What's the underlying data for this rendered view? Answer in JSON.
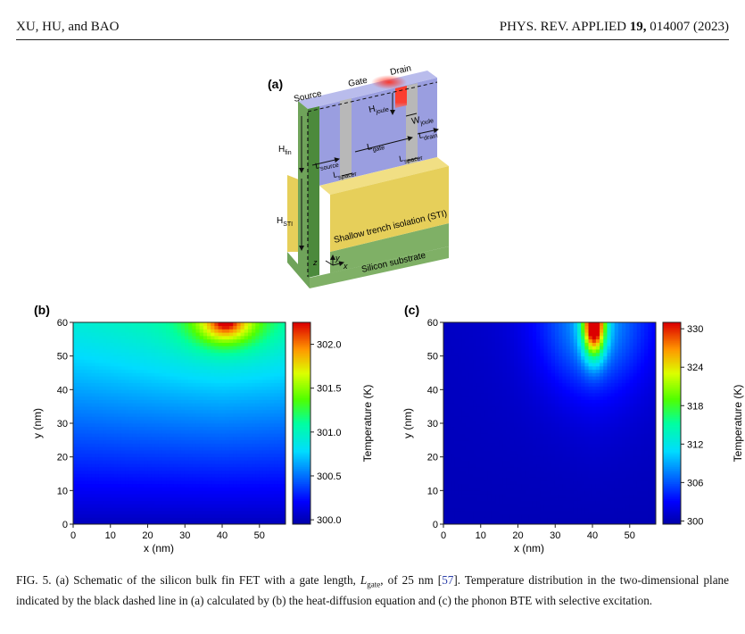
{
  "header": {
    "authors": "XU, HU, and BAO",
    "journal_prefix": "PHYS. REV. APPLIED ",
    "volume": "19,",
    "article": " 014007 (2023)"
  },
  "figure_a": {
    "panel_label": "(a)",
    "labels": {
      "source": "Source",
      "gate": "Gate",
      "drain": "Drain",
      "h_fin": "H",
      "h_fin_sub": "fin",
      "h_sti": "H",
      "h_sti_sub": "STI",
      "h_joule": "H",
      "h_joule_sub": "joule",
      "w_joule": "W",
      "w_joule_sub": "joule",
      "l_drain": "L",
      "l_drain_sub": "drain",
      "l_gate": "L",
      "l_gate_sub": "gate",
      "l_source": "L",
      "l_source_sub": "source",
      "l_spacer1": "L",
      "l_spacer1_sub": "spacer",
      "l_spacer2": "L",
      "l_spacer2_sub": "spacer",
      "sti": "Shallow trench isolation (STI)",
      "substrate": "Silicon substrate",
      "axis_z": "z",
      "axis_y": "y",
      "axis_x": "x"
    },
    "colors": {
      "fin": "#9a9ee0",
      "fin_top": "#b9bcec",
      "spacer": "#b8b8b8",
      "sti_front": "#e6cf5a",
      "sti_top": "#f1df84",
      "substrate": "#7fb066",
      "source_green": "#6fa35a",
      "joule": "#ff3b2a"
    }
  },
  "chart_data": [
    {
      "type": "heatmap",
      "panel_label": "(b)",
      "xlabel": "x (nm)",
      "ylabel": "y (nm)",
      "xlim": [
        0,
        57
      ],
      "ylim": [
        0,
        60
      ],
      "xticks": [
        "0",
        "10",
        "20",
        "30",
        "40",
        "50"
      ],
      "yticks": [
        "0",
        "10",
        "20",
        "30",
        "40",
        "50",
        "60"
      ],
      "colorbar": {
        "label": "Temperature (K)",
        "range": [
          299.95,
          302.25
        ],
        "ticks": [
          "300.0",
          "300.5",
          "301.0",
          "301.5",
          "302.0"
        ],
        "tick_values": [
          300.0,
          300.5,
          301.0,
          301.5,
          302.0
        ]
      },
      "hotspot": {
        "x": 41,
        "y": 60,
        "max_temperature": 302.25,
        "base_temperature": 300.0
      }
    },
    {
      "type": "heatmap",
      "panel_label": "(c)",
      "xlabel": "x (nm)",
      "ylabel": "y (nm)",
      "xlim": [
        0,
        57
      ],
      "ylim": [
        0,
        60
      ],
      "xticks": [
        "0",
        "10",
        "20",
        "30",
        "40",
        "50"
      ],
      "yticks": [
        "0",
        "10",
        "20",
        "30",
        "40",
        "50",
        "60"
      ],
      "colorbar": {
        "label": "Temperature (K)",
        "range": [
          299.5,
          331
        ],
        "ticks": [
          "300",
          "306",
          "312",
          "318",
          "324",
          "330"
        ],
        "tick_values": [
          300,
          306,
          312,
          318,
          324,
          330
        ]
      },
      "hotspot": {
        "x": 40.5,
        "y": 60,
        "max_temperature": 331,
        "base_temperature": 300.0
      }
    }
  ],
  "caption": {
    "fig_label": "FIG. 5.",
    "part1": "  (a) Schematic of the silicon bulk fin FET with a gate length, ",
    "lgate": "L",
    "lgate_sub": "gate",
    "part2": ", of 25 nm [",
    "cite": "57",
    "part3": "]. Temperature distribution in the two-dimensional plane indicated by the black dashed line in (a) calculated by (b) the heat-diffusion equation and (c) the phonon BTE with selective excitation."
  }
}
